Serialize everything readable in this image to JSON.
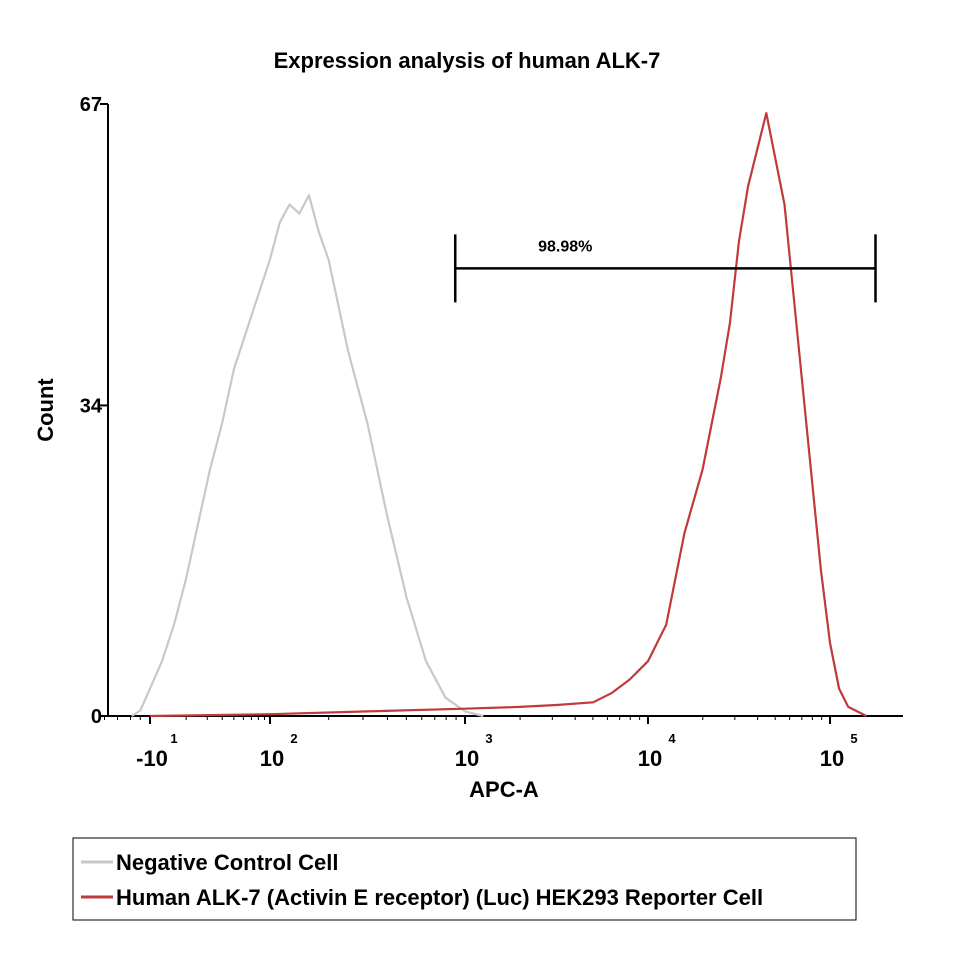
{
  "chart_data": {
    "type": "histogram",
    "title": "Expression analysis of human ALK-7",
    "xlabel": "APC-A",
    "ylabel": "Count",
    "ylim": [
      0,
      67
    ],
    "y_ticks": [
      "0",
      "34",
      "67"
    ],
    "x_scale": "biexponential",
    "x_ticks": [
      {
        "base": "-10",
        "exp": "1"
      },
      {
        "base": "10",
        "exp": "2"
      },
      {
        "base": "10",
        "exp": "3"
      },
      {
        "base": "10",
        "exp": "4"
      },
      {
        "base": "10",
        "exp": "5"
      }
    ],
    "gate": {
      "label": "98.98%",
      "from_log10": 2.95,
      "to_log10": 5.25,
      "level": 49
    },
    "series": [
      {
        "name": "Negative Control Cell",
        "color": "#c8c8c8",
        "points": [
          [
            0.72,
            0
          ],
          [
            0.85,
            0.6
          ],
          [
            1.0,
            3
          ],
          [
            1.1,
            6
          ],
          [
            1.2,
            10
          ],
          [
            1.3,
            15
          ],
          [
            1.4,
            21
          ],
          [
            1.5,
            27
          ],
          [
            1.6,
            32
          ],
          [
            1.7,
            38
          ],
          [
            1.8,
            42
          ],
          [
            1.9,
            46
          ],
          [
            2.0,
            50
          ],
          [
            2.05,
            54
          ],
          [
            2.1,
            56
          ],
          [
            2.15,
            55
          ],
          [
            2.2,
            57
          ],
          [
            2.25,
            53
          ],
          [
            2.3,
            50
          ],
          [
            2.35,
            45
          ],
          [
            2.4,
            40
          ],
          [
            2.5,
            32
          ],
          [
            2.6,
            22
          ],
          [
            2.7,
            13
          ],
          [
            2.8,
            6
          ],
          [
            2.9,
            2
          ],
          [
            3.0,
            0.5
          ],
          [
            3.1,
            0
          ]
        ]
      },
      {
        "name": "Human ALK-7 (Activin E receptor) (Luc) HEK293 Reporter Cell",
        "color": "#c0393b",
        "points": [
          [
            1.0,
            0
          ],
          [
            2.0,
            0.2
          ],
          [
            2.5,
            0.5
          ],
          [
            3.0,
            0.8
          ],
          [
            3.3,
            1.0
          ],
          [
            3.5,
            1.2
          ],
          [
            3.7,
            1.5
          ],
          [
            3.8,
            2.5
          ],
          [
            3.9,
            4
          ],
          [
            4.0,
            6
          ],
          [
            4.05,
            8
          ],
          [
            4.1,
            10
          ],
          [
            4.15,
            15
          ],
          [
            4.2,
            20
          ],
          [
            4.3,
            27
          ],
          [
            4.4,
            37
          ],
          [
            4.45,
            43
          ],
          [
            4.5,
            52
          ],
          [
            4.55,
            58
          ],
          [
            4.6,
            62
          ],
          [
            4.65,
            66
          ],
          [
            4.7,
            61
          ],
          [
            4.75,
            56
          ],
          [
            4.8,
            46
          ],
          [
            4.85,
            36
          ],
          [
            4.9,
            26
          ],
          [
            4.95,
            16
          ],
          [
            5.0,
            8
          ],
          [
            5.05,
            3
          ],
          [
            5.1,
            1
          ],
          [
            5.2,
            0
          ]
        ]
      }
    ],
    "legend_position": "bottom"
  }
}
